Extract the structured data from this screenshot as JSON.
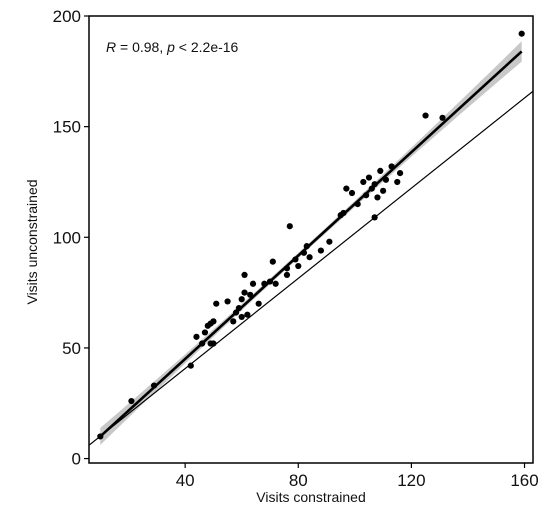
{
  "chart_data": {
    "type": "scatter",
    "xlabel": "Visits constrained",
    "ylabel": "Visits unconstrained",
    "annotation": {
      "r_label": "R",
      "r_text": " = 0.98, ",
      "p_label": "p",
      "p_text": " < 2.2e-16"
    },
    "xlim": [
      6,
      163
    ],
    "ylim": [
      -2,
      200
    ],
    "x_ticks": [
      40,
      80,
      120,
      160
    ],
    "y_ticks": [
      0,
      50,
      100,
      150,
      200
    ],
    "x_tick_labels": [
      "40",
      "80",
      "120",
      "160"
    ],
    "y_tick_labels": [
      "0",
      "50",
      "100",
      "150",
      "200"
    ],
    "grid": false,
    "points": [
      {
        "x": 10,
        "y": 10
      },
      {
        "x": 21,
        "y": 26
      },
      {
        "x": 29,
        "y": 33
      },
      {
        "x": 42,
        "y": 42
      },
      {
        "x": 44,
        "y": 55
      },
      {
        "x": 46,
        "y": 52
      },
      {
        "x": 47,
        "y": 57
      },
      {
        "x": 48,
        "y": 60
      },
      {
        "x": 49,
        "y": 61
      },
      {
        "x": 49,
        "y": 52
      },
      {
        "x": 50,
        "y": 52
      },
      {
        "x": 50,
        "y": 62
      },
      {
        "x": 51,
        "y": 70
      },
      {
        "x": 55,
        "y": 71
      },
      {
        "x": 57,
        "y": 62
      },
      {
        "x": 58,
        "y": 66
      },
      {
        "x": 59,
        "y": 68
      },
      {
        "x": 60,
        "y": 64
      },
      {
        "x": 60,
        "y": 72
      },
      {
        "x": 61,
        "y": 75
      },
      {
        "x": 61,
        "y": 83
      },
      {
        "x": 62,
        "y": 65
      },
      {
        "x": 63,
        "y": 74
      },
      {
        "x": 64,
        "y": 79
      },
      {
        "x": 66,
        "y": 70
      },
      {
        "x": 68,
        "y": 79
      },
      {
        "x": 70,
        "y": 80
      },
      {
        "x": 71,
        "y": 89
      },
      {
        "x": 72,
        "y": 79
      },
      {
        "x": 76,
        "y": 83
      },
      {
        "x": 76,
        "y": 86
      },
      {
        "x": 77,
        "y": 105
      },
      {
        "x": 79,
        "y": 90
      },
      {
        "x": 80,
        "y": 87
      },
      {
        "x": 82,
        "y": 93
      },
      {
        "x": 83,
        "y": 96
      },
      {
        "x": 84,
        "y": 91
      },
      {
        "x": 88,
        "y": 94
      },
      {
        "x": 91,
        "y": 98
      },
      {
        "x": 95,
        "y": 110
      },
      {
        "x": 96,
        "y": 111
      },
      {
        "x": 97,
        "y": 122
      },
      {
        "x": 99,
        "y": 120
      },
      {
        "x": 101,
        "y": 115
      },
      {
        "x": 103,
        "y": 125
      },
      {
        "x": 104,
        "y": 119
      },
      {
        "x": 105,
        "y": 127
      },
      {
        "x": 106,
        "y": 122
      },
      {
        "x": 107,
        "y": 109
      },
      {
        "x": 107,
        "y": 124
      },
      {
        "x": 108,
        "y": 118
      },
      {
        "x": 109,
        "y": 130
      },
      {
        "x": 110,
        "y": 121
      },
      {
        "x": 111,
        "y": 126
      },
      {
        "x": 113,
        "y": 132
      },
      {
        "x": 115,
        "y": 125
      },
      {
        "x": 116,
        "y": 129
      },
      {
        "x": 125,
        "y": 155
      },
      {
        "x": 131,
        "y": 154
      },
      {
        "x": 159,
        "y": 192
      }
    ],
    "regression_line": {
      "x": [
        10,
        159
      ],
      "y": [
        10,
        184
      ]
    },
    "identity_line": {
      "x": [
        4,
        163
      ],
      "y": [
        4,
        166
      ]
    },
    "colors": {
      "points": "#000000",
      "regression": "#000000",
      "band": "#c8c8c8",
      "identity": "#000000",
      "frame": "#000000"
    }
  }
}
